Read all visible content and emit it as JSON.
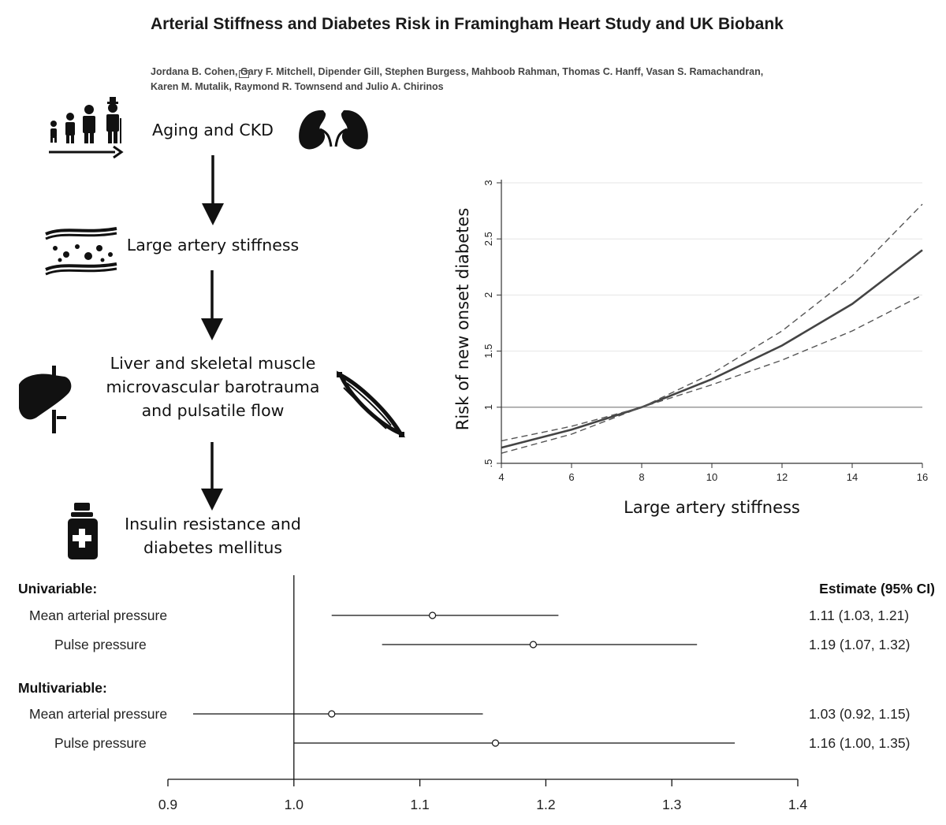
{
  "paper": {
    "title": "Arterial Stiffness and Diabetes Risk in Framingham Heart Study and UK Biobank",
    "authors_line1": "Jordana B. Cohen, Gary F. Mitchell, Dipender Gill, Stephen Burgess, Mahboob Rahman, Thomas C. Hanff, Vasan S. Ramachandran,",
    "authors_line2": "Karen M. Mutalik, Raymond R. Townsend and Julio A. Chirinos"
  },
  "flow": {
    "steps": [
      {
        "lines": [
          "Aging and CKD"
        ],
        "icons": [
          "family-ages-icon",
          "kidneys-icon"
        ]
      },
      {
        "lines": [
          "Large artery stiffness"
        ],
        "icons": [
          "artery-icon"
        ]
      },
      {
        "lines": [
          "Liver and skeletal muscle",
          "microvascular barotrauma",
          "and pulsatile flow"
        ],
        "icons": [
          "liver-icon",
          "muscle-icon"
        ]
      },
      {
        "lines": [
          "Insulin resistance and",
          "diabetes mellitus"
        ],
        "icons": [
          "medicine-bottle-icon"
        ]
      }
    ]
  },
  "chart_data": [
    {
      "type": "line",
      "xlabel": "Large artery stiffness",
      "ylabel": "Risk of new onset diabetes",
      "xlim": [
        4,
        16
      ],
      "ylim": [
        0.5,
        3
      ],
      "xticks": [
        "4",
        "6",
        "8",
        "10",
        "12",
        "14",
        "16"
      ],
      "yticks": [
        ".5",
        "1",
        "1.5",
        "2",
        "2.5",
        "3"
      ],
      "grid": true,
      "reference_line": 1,
      "x": [
        4,
        6,
        8,
        10,
        12,
        14,
        16
      ],
      "series": [
        {
          "style": "solid",
          "values": [
            0.64,
            0.8,
            1.0,
            1.25,
            1.55,
            1.92,
            2.4
          ]
        },
        {
          "style": "dashed",
          "values": [
            0.7,
            0.83,
            1.0,
            1.3,
            1.68,
            2.17,
            2.81
          ]
        },
        {
          "style": "dashed",
          "values": [
            0.59,
            0.76,
            1.0,
            1.2,
            1.42,
            1.68,
            2.0
          ]
        }
      ]
    },
    {
      "type": "forest",
      "xlim": [
        0.9,
        1.4
      ],
      "xticks": [
        "0.9",
        "1.0",
        "1.1",
        "1.2",
        "1.3",
        "1.4"
      ],
      "reference_line": 1.0,
      "estimate_header": "Estimate (95% CI)",
      "groups": [
        {
          "label": "Univariable:",
          "rows": [
            {
              "label": "Mean arterial pressure",
              "estimate": 1.11,
              "lower": 1.03,
              "upper": 1.21,
              "text": "1.11 (1.03, 1.21)"
            },
            {
              "label": "Pulse pressure",
              "estimate": 1.19,
              "lower": 1.07,
              "upper": 1.32,
              "text": "1.19 (1.07, 1.32)"
            }
          ]
        },
        {
          "label": "Multivariable:",
          "rows": [
            {
              "label": "Mean arterial pressure",
              "estimate": 1.03,
              "lower": 0.92,
              "upper": 1.15,
              "text": "1.03 (0.92, 1.15)"
            },
            {
              "label": "Pulse pressure",
              "estimate": 1.16,
              "lower": 1.0,
              "upper": 1.35,
              "text": "1.16 (1.00, 1.35)"
            }
          ]
        }
      ]
    }
  ]
}
